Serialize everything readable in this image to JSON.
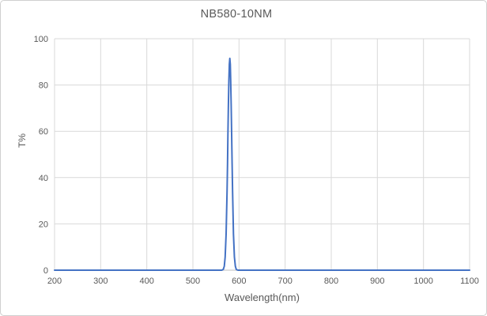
{
  "figure": {
    "title": "NB580-10NM"
  },
  "colors": {
    "line": "#4472C4",
    "grid": "#D9D9D9",
    "axis": "#BFBFBF",
    "text": "#595959",
    "background": "#FFFFFF",
    "border": "#CFCFCF"
  },
  "chart_data": {
    "type": "line",
    "title": "NB580-10NM",
    "xlabel": "Wavelength(nm)",
    "ylabel": "T%",
    "xlim": [
      200,
      1100
    ],
    "ylim": [
      0,
      100
    ],
    "xticks": [
      200,
      300,
      400,
      500,
      600,
      700,
      800,
      900,
      1000,
      1100
    ],
    "yticks": [
      0,
      20,
      40,
      60,
      80,
      100
    ],
    "grid": true,
    "legend_position": "none",
    "series": [
      {
        "name": "NB580-10NM",
        "peak_wavelength_nm": 580,
        "peak_transmission_pct": 91.5,
        "fwhm_nm": 10,
        "points": [
          [
            200,
            0
          ],
          [
            250,
            0
          ],
          [
            300,
            0
          ],
          [
            350,
            0
          ],
          [
            400,
            0
          ],
          [
            450,
            0
          ],
          [
            500,
            0
          ],
          [
            530,
            0
          ],
          [
            550,
            0
          ],
          [
            560,
            0
          ],
          [
            562,
            0
          ],
          [
            564,
            0.1
          ],
          [
            566,
            0.4
          ],
          [
            568,
            1.7
          ],
          [
            570,
            5.7
          ],
          [
            572,
            15.6
          ],
          [
            574,
            33.8
          ],
          [
            575,
            45.8
          ],
          [
            576,
            58.7
          ],
          [
            577,
            71.5
          ],
          [
            578,
            81.9
          ],
          [
            579,
            89.0
          ],
          [
            580,
            91.5
          ],
          [
            581,
            89.0
          ],
          [
            582,
            81.9
          ],
          [
            583,
            71.5
          ],
          [
            584,
            58.7
          ],
          [
            585,
            45.8
          ],
          [
            586,
            33.8
          ],
          [
            588,
            15.6
          ],
          [
            590,
            5.7
          ],
          [
            592,
            1.7
          ],
          [
            594,
            0.4
          ],
          [
            596,
            0.1
          ],
          [
            598,
            0
          ],
          [
            600,
            0
          ],
          [
            650,
            0
          ],
          [
            700,
            0
          ],
          [
            750,
            0
          ],
          [
            800,
            0
          ],
          [
            850,
            0
          ],
          [
            900,
            0
          ],
          [
            950,
            0
          ],
          [
            1000,
            0
          ],
          [
            1050,
            0
          ],
          [
            1100,
            0
          ]
        ]
      }
    ]
  }
}
